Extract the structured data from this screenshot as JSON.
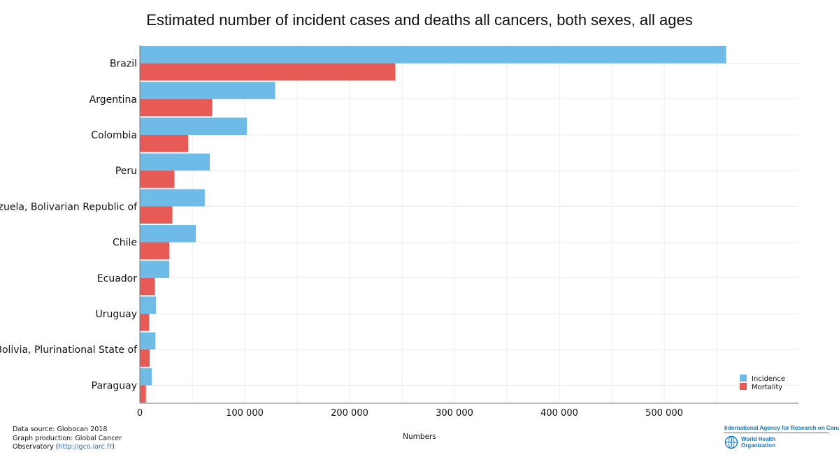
{
  "chart_data": {
    "type": "bar",
    "orientation": "horizontal",
    "title": "Estimated number of incident cases and deaths all cancers, both sexes, all ages",
    "xlabel": "Numbers",
    "categories": [
      "Brazil",
      "Argentina",
      "Colombia",
      "Peru",
      "Venezuela, Bolivarian Republic of",
      "Chile",
      "Ecuador",
      "Uruguay",
      "Bolivia, Plurinational State of",
      "Paraguay"
    ],
    "series": [
      {
        "name": "Incidence",
        "color": "#6dbbe6",
        "values": [
          559000,
          129000,
          102000,
          66700,
          61900,
          53400,
          28100,
          15300,
          14900,
          11300
        ]
      },
      {
        "name": "Mortality",
        "color": "#e85a56",
        "values": [
          243600,
          69000,
          46000,
          33000,
          31000,
          28200,
          14400,
          8800,
          9400,
          5800
        ]
      }
    ],
    "xlim": [
      0,
      600000
    ],
    "xticks": [
      0,
      100000,
      200000,
      300000,
      400000,
      500000
    ],
    "xtick_labels": [
      "0",
      "100 000",
      "200 000",
      "300 000",
      "400 000",
      "500 000"
    ],
    "grid": true,
    "legend_position": "bottom-right"
  },
  "footer": {
    "source": "Data source: Globocan 2018",
    "production_1": "Graph production: Global Cancer",
    "production_2": "Observatory (",
    "link": "http://gco.iarc.fr",
    "close": ")"
  },
  "logos": {
    "iarc": "International Agency for Research on Cancer",
    "who_1": "World Health",
    "who_2": "Organization",
    "who_icon": "who-emblem-icon"
  }
}
